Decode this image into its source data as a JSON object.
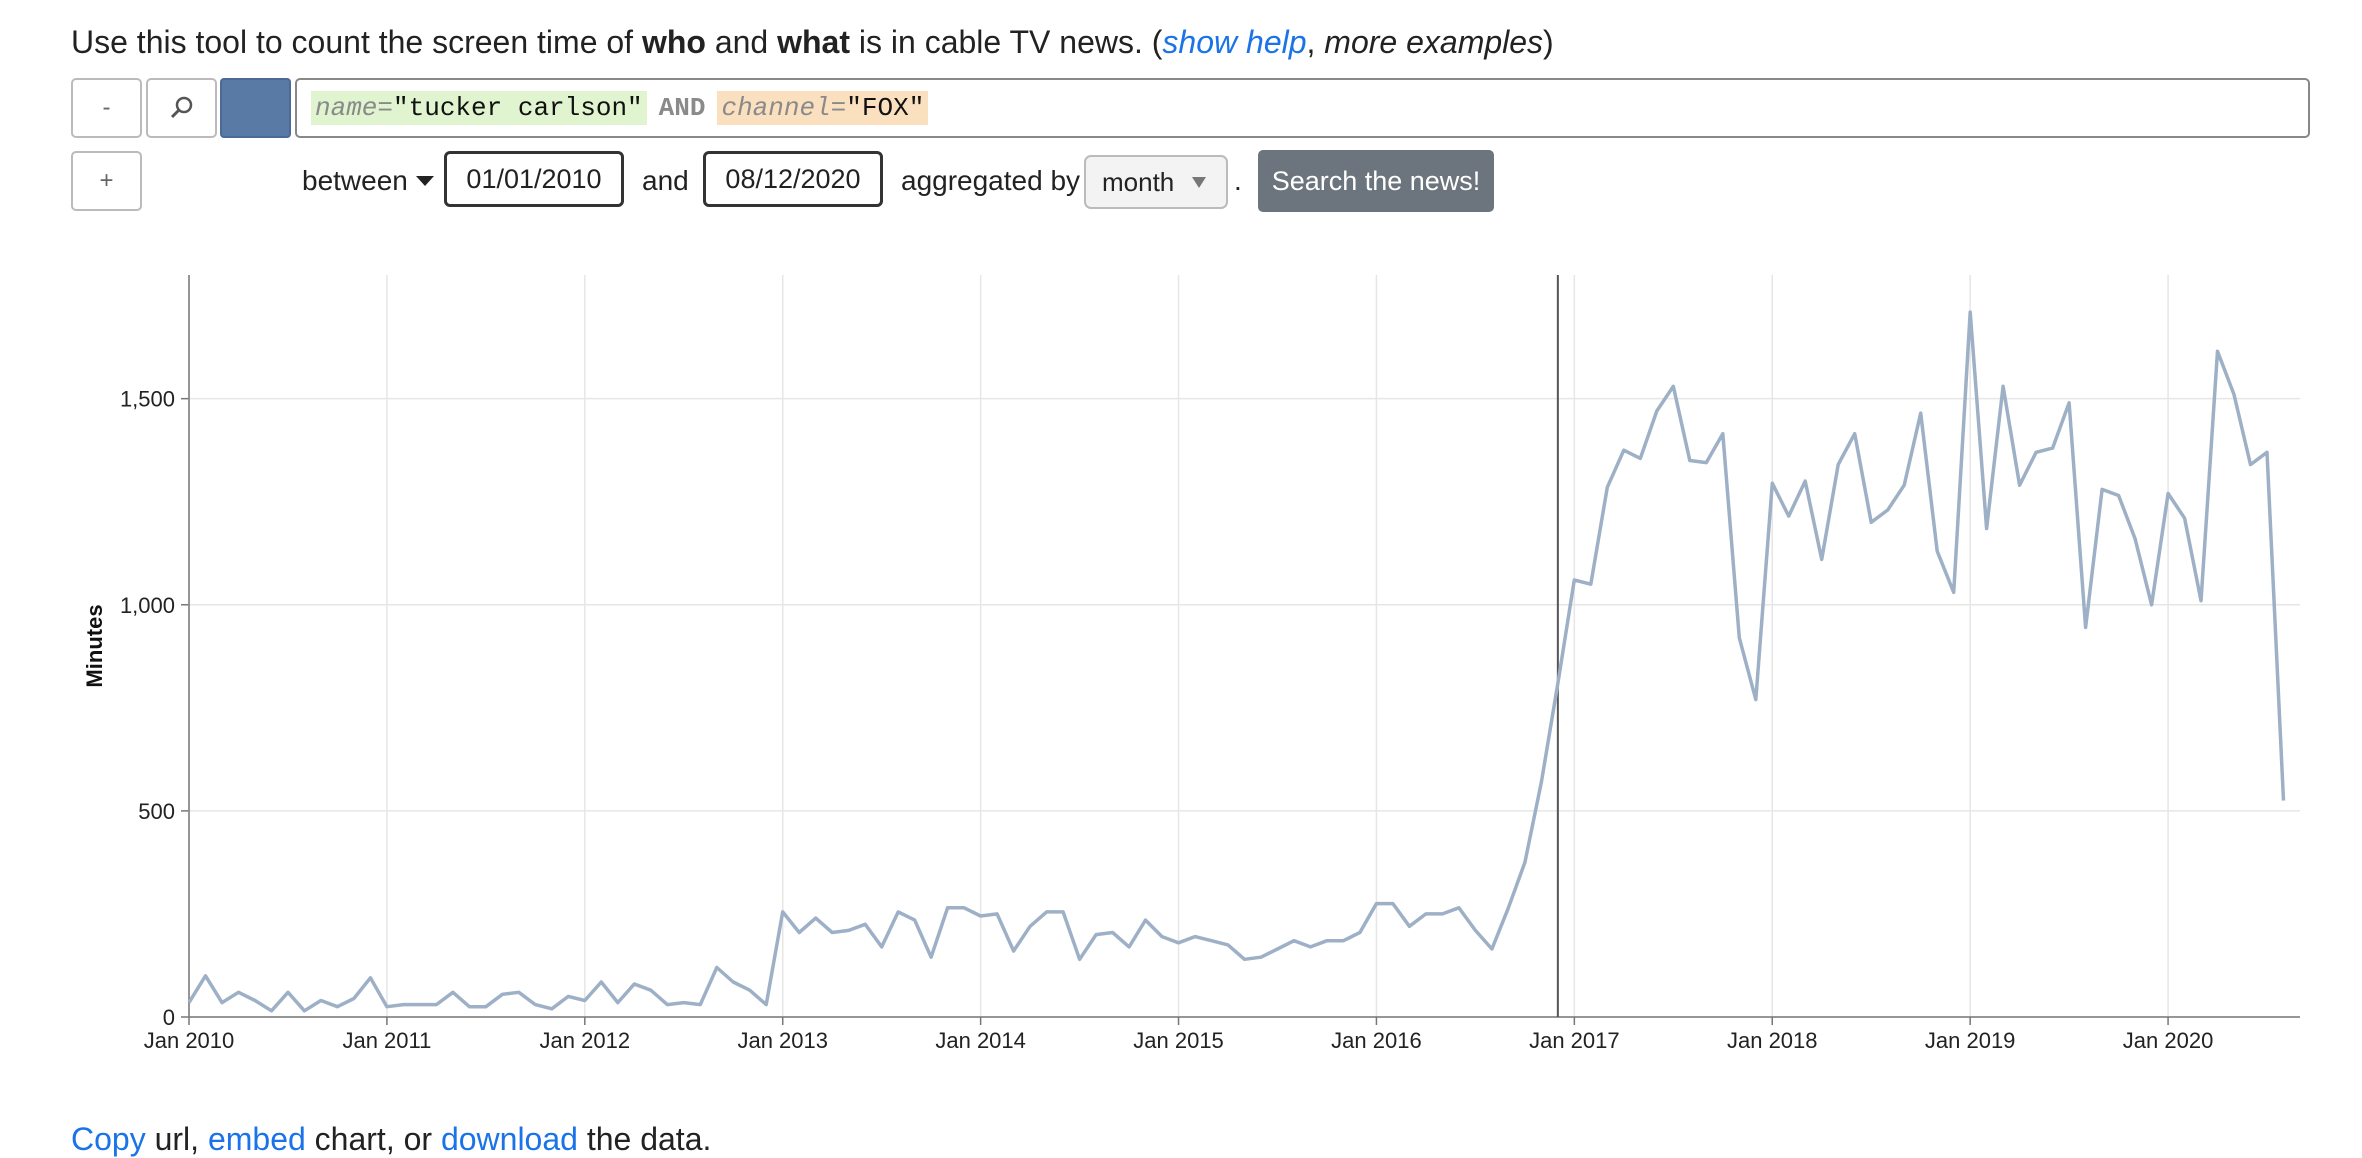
{
  "intro": {
    "prefix": "Use this tool to count the screen time of ",
    "who": "who",
    "and": " and ",
    "what": "what",
    "suffix": " is in cable TV news. (",
    "help_link": "show help",
    "comma": ", ",
    "examples": "more examples",
    "close": ")"
  },
  "controls": {
    "minus_label": "-",
    "search_icon": "magnifier-icon",
    "plus_label": "+",
    "series_color": "#5a7aa6"
  },
  "query": {
    "name_key": "name=",
    "name_value": "\"tucker carlson\"",
    "operator": "AND",
    "channel_key": "channel=",
    "channel_value": "\"FOX\""
  },
  "filters": {
    "between_label": "between",
    "start_date": "01/01/2010",
    "and_label": "and",
    "end_date": "08/12/2020",
    "aggregated_label": "aggregated by",
    "aggregation": "month",
    "period": ".",
    "submit_label": "Search the news!"
  },
  "chart_data": {
    "type": "line",
    "ylabel": "Minutes",
    "xlabel": "",
    "ylim": [
      0,
      1800
    ],
    "yticks": [
      0,
      500,
      1000,
      1500
    ],
    "ytick_labels": [
      "0",
      "500",
      "1,000",
      "1,500"
    ],
    "xticks": [
      "Jan 2010",
      "Jan 2011",
      "Jan 2012",
      "Jan 2013",
      "Jan 2014",
      "Jan 2015",
      "Jan 2016",
      "Jan 2017",
      "Jan 2018",
      "Jan 2019",
      "Jan 2020"
    ],
    "x_start": "2010-01",
    "grid": true,
    "line_color": "#9db0c6",
    "cursor_x": "2016-12",
    "series": [
      {
        "values": [
          35,
          100,
          35,
          60,
          40,
          15,
          60,
          15,
          40,
          25,
          45,
          95,
          25,
          30,
          30,
          30,
          60,
          25,
          25,
          55,
          60,
          30,
          20,
          50,
          40,
          85,
          35,
          80,
          65,
          30,
          35,
          30,
          120,
          85,
          65,
          30,
          255,
          205,
          240,
          205,
          210,
          225,
          170,
          255,
          235,
          145,
          265,
          265,
          245,
          250,
          160,
          220,
          255,
          255,
          140,
          200,
          205,
          170,
          235,
          195,
          180,
          195,
          185,
          175,
          140,
          145,
          165,
          185,
          170,
          185,
          185,
          205,
          275,
          275,
          220,
          250,
          250,
          265,
          210,
          165,
          265,
          375,
          570,
          810,
          1060,
          1050,
          1285,
          1375,
          1355,
          1470,
          1530,
          1350,
          1345,
          1415,
          920,
          770,
          1295,
          1215,
          1300,
          1110,
          1340,
          1415,
          1200,
          1230,
          1290,
          1465,
          1130,
          1030,
          1710,
          1185,
          1530,
          1290,
          1370,
          1380,
          1490,
          945,
          1280,
          1265,
          1160,
          1000,
          1270,
          1210,
          1010,
          1615,
          1510,
          1340,
          1370,
          525
        ]
      }
    ]
  },
  "footer": {
    "copy": "Copy",
    "url_text": " url, ",
    "embed": "embed",
    "chart_text": " chart, or ",
    "download": "download",
    "data_text": " the data."
  }
}
